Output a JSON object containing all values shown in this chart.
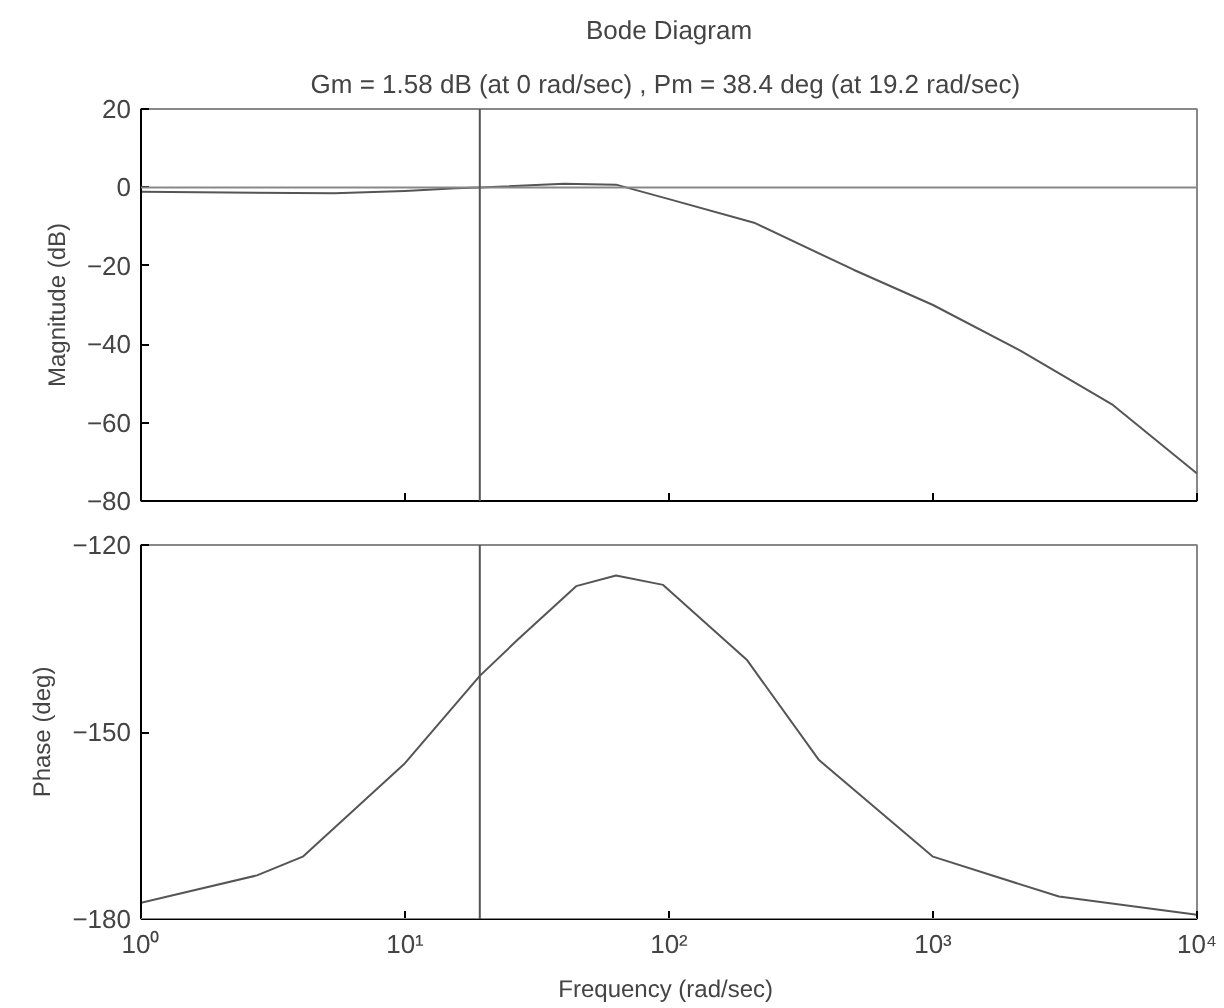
{
  "chart_data": [
    {
      "type": "line",
      "title": "Bode Diagram",
      "subtitle": "Gm = 1.58 dB (at 0 rad/sec) ,  Pm = 38.4 deg (at 19.2 rad/sec)",
      "ylabel": "Magnitude (dB)",
      "log": "x",
      "grid": false,
      "tick_labels": "y",
      "x": [
        1,
        5.4,
        10,
        15.6,
        19.2,
        40,
        63,
        100,
        210,
        500,
        1000,
        2150,
        4800,
        10000
      ],
      "series": [
        {
          "color": "#555555",
          "values": [
            -1.1,
            -1.5,
            -0.9,
            -0.2,
            0,
            0.9,
            0.7,
            -3,
            -9,
            -21,
            -30,
            -41.7,
            -55.5,
            -73
          ]
        }
      ],
      "xlim": [
        1,
        10000
      ],
      "xticks": [
        {
          "value": 1,
          "label": null
        },
        {
          "value": 10,
          "label": null
        },
        {
          "value": 100,
          "label": null
        },
        {
          "value": 1000,
          "label": null
        },
        {
          "value": 10000,
          "label": null
        }
      ],
      "ylim": [
        -80,
        20
      ],
      "yticks": [
        -80,
        -60,
        -40,
        -20,
        0,
        20
      ],
      "ref_lines": [
        {
          "axis": "y",
          "value": 0,
          "color": "#888888"
        },
        {
          "axis": "x",
          "value": 19.2,
          "color": "#555555"
        }
      ]
    },
    {
      "type": "line",
      "xlabel": "Frequency  (rad/sec)",
      "ylabel": "Phase (deg)",
      "log": "x",
      "grid": false,
      "x": [
        1,
        2.75,
        4.1,
        10,
        19.2,
        26.7,
        44.5,
        63,
        95,
        197,
        370,
        1000,
        3000,
        10000
      ],
      "series": [
        {
          "color": "#555555",
          "values": [
            -177.4,
            -173,
            -170,
            -155,
            -141,
            -135.2,
            -126.6,
            -124.9,
            -126.4,
            -138.4,
            -154.5,
            -170,
            -176.4,
            -179.3
          ]
        }
      ],
      "xlim": [
        1,
        10000
      ],
      "xticks": [
        {
          "value": 1,
          "label": "10⁰"
        },
        {
          "value": 10,
          "label": "10¹"
        },
        {
          "value": 100,
          "label": "10²"
        },
        {
          "value": 1000,
          "label": "10³"
        },
        {
          "value": 10000,
          "label": "10⁴"
        }
      ],
      "ylim": [
        -180,
        -120
      ],
      "yticks": [
        -180,
        -150,
        -120
      ],
      "ref_lines": [
        {
          "axis": "y",
          "value": -180,
          "color": "#888888"
        },
        {
          "axis": "x",
          "value": 19.2,
          "color": "#555555"
        }
      ]
    }
  ]
}
